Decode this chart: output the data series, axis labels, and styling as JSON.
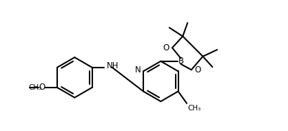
{
  "background_color": "#ffffff",
  "line_color": "#000000",
  "line_width": 1.5,
  "font_size": 8.5,
  "figsize": [
    4.18,
    1.9
  ],
  "dpi": 100,
  "xlim": [
    -3.2,
    2.8
  ],
  "ylim": [
    -1.2,
    1.4
  ]
}
